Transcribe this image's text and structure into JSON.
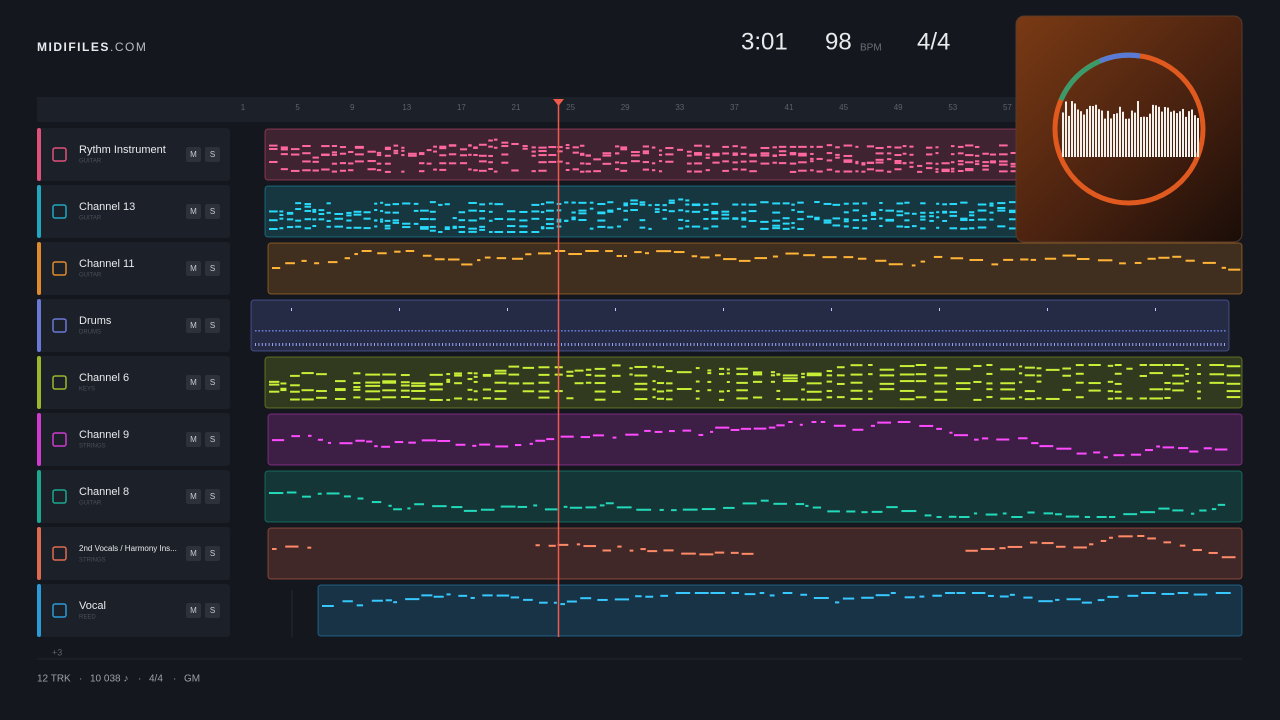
{
  "header": {
    "brand": "MIDIFILES",
    "brand_suffix": ".COM",
    "time": "3:01",
    "tempo": "98",
    "tempo_unit": "BPM",
    "meter": "4/4"
  },
  "ruler": {
    "bars": [
      1,
      5,
      9,
      13,
      17,
      21,
      25,
      29,
      33,
      37,
      41,
      45,
      49,
      53,
      57
    ]
  },
  "tracks": [
    {
      "name": "Rythm Instrument",
      "instrument": "GUITAR",
      "color": "#e0507a",
      "mute": "M",
      "solo": "S"
    },
    {
      "name": "Channel 13",
      "instrument": "GUITAR",
      "color": "#1fa8c0",
      "mute": "M",
      "solo": "S"
    },
    {
      "name": "Channel 11",
      "instrument": "GUITAR",
      "color": "#e08a2a",
      "mute": "M",
      "solo": "S"
    },
    {
      "name": "Drums",
      "instrument": "DRUMS",
      "color": "#6a78d8",
      "mute": "M",
      "solo": "S"
    },
    {
      "name": "Channel 6",
      "instrument": "KEYS",
      "color": "#9ab82a",
      "mute": "M",
      "solo": "S"
    },
    {
      "name": "Channel 9",
      "instrument": "STRINGS",
      "color": "#d03ad0",
      "mute": "M",
      "solo": "S"
    },
    {
      "name": "Channel 8",
      "instrument": "GUITAR",
      "color": "#1aa890",
      "mute": "M",
      "solo": "S"
    },
    {
      "name": "2nd Vocals / Harmony Ins...",
      "instrument": "STRINGS",
      "color": "#e06a50",
      "mute": "M",
      "solo": "S"
    },
    {
      "name": "Vocal",
      "instrument": "REED",
      "color": "#2a9ad8",
      "mute": "M",
      "solo": "S"
    }
  ],
  "more": "+3",
  "footer": {
    "tracks": "12 TRK",
    "notes": "10 038 ♪",
    "meter": "4/4",
    "standard": "GM",
    "separator": "·"
  }
}
